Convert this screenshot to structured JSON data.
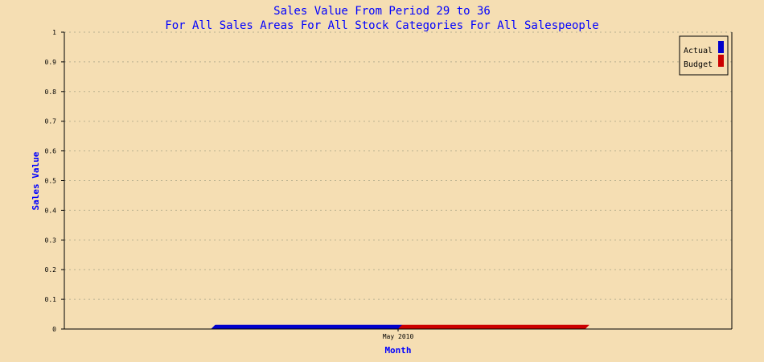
{
  "chart_data": {
    "type": "bar",
    "title": "Sales Value From Period 29 to 36",
    "subtitle": "For All Sales Areas For All Stock Categories For All Salespeople",
    "xlabel": "Month",
    "ylabel": "Sales Value",
    "categories": [
      "May 2010"
    ],
    "series": [
      {
        "name": "Actual",
        "values": [
          0
        ],
        "color": "#0000CC"
      },
      {
        "name": "Budget",
        "values": [
          0
        ],
        "color": "#CC0000"
      }
    ],
    "ylim": [
      0,
      1
    ],
    "yticks": [
      "0",
      "0.1",
      "0.2",
      "0.3",
      "0.4",
      "0.5",
      "0.6",
      "0.7",
      "0.8",
      "0.9",
      "1"
    ],
    "grid": "horizontal-dotted",
    "legend": "top-right"
  },
  "colors": {
    "background": "#F5DEB3",
    "title": "#0000FF",
    "axis": "#000000",
    "grid": "#B8B090"
  }
}
